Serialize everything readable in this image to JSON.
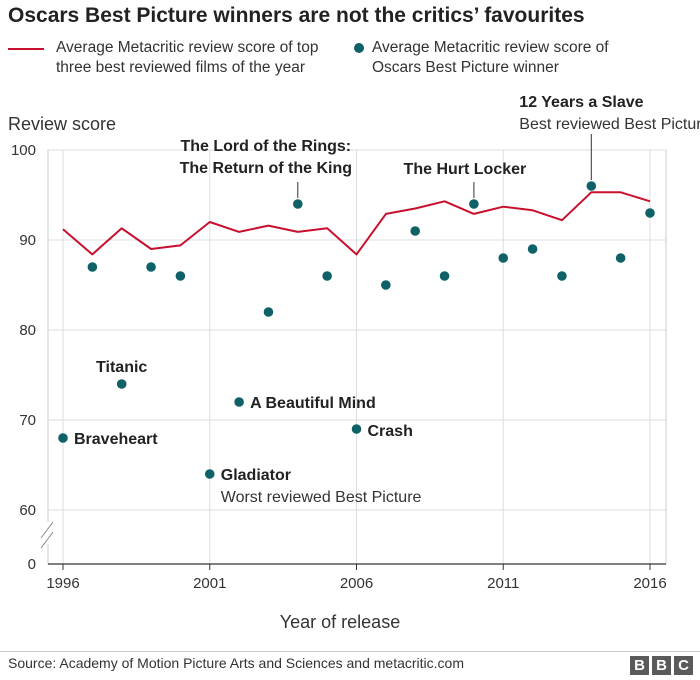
{
  "title": "Oscars Best Picture winners are not the critics’ favourites",
  "source": "Source: Academy of Motion Picture Arts and Sciences and metacritic.com",
  "logo_letters": [
    "B",
    "B",
    "C"
  ],
  "colors": {
    "line": "#c8102e",
    "dot": "#0e6166",
    "grid": "#dddddd",
    "axis": "#333333"
  },
  "chart_data": {
    "type": "line",
    "title": "Oscars Best Picture winners are not the critics’ favourites",
    "xlabel": "Year of release",
    "ylabel": "Review score",
    "x_ticks": [
      1996,
      2001,
      2006,
      2011,
      2016
    ],
    "y_ticks": [
      0,
      60,
      70,
      80,
      90,
      100
    ],
    "ylim": [
      60,
      100
    ],
    "y_axis_break": true,
    "grid": true,
    "series": [
      {
        "name": "Average Metacritic review score of top three best reviewed films of the year",
        "style": "line",
        "x": [
          1996,
          1997,
          1998,
          1999,
          2000,
          2001,
          2002,
          2003,
          2004,
          2005,
          2006,
          2007,
          2008,
          2009,
          2010,
          2011,
          2012,
          2013,
          2014,
          2015,
          2016
        ],
        "y": [
          91.2,
          88.4,
          91.3,
          89.0,
          89.4,
          92.0,
          90.9,
          91.6,
          90.9,
          91.3,
          88.4,
          92.9,
          93.5,
          94.3,
          92.9,
          93.7,
          93.3,
          92.2,
          95.3,
          95.3,
          94.3
        ]
      },
      {
        "name": "Average Metacritic review score of Oscars Best Picture winner",
        "style": "dot",
        "x": [
          1996,
          1997,
          1998,
          1999,
          2000,
          2001,
          2002,
          2003,
          2004,
          2005,
          2006,
          2007,
          2008,
          2009,
          2010,
          2011,
          2012,
          2013,
          2014,
          2015,
          2016
        ],
        "y": [
          68,
          87,
          74,
          87,
          86,
          64,
          72,
          82,
          94,
          86,
          69,
          85,
          91,
          86,
          94,
          88,
          89,
          86,
          96,
          88,
          93
        ]
      }
    ],
    "annotations": [
      {
        "id": "braveheart",
        "year": 1996,
        "lines": [
          "Braveheart"
        ],
        "bold": true
      },
      {
        "id": "titanic",
        "year": 1998,
        "lines": [
          "Titanic"
        ],
        "bold": true
      },
      {
        "id": "gladiator",
        "year": 2001,
        "lines": [
          "Gladiator"
        ],
        "sub": "Worst reviewed Best Picture",
        "bold": true
      },
      {
        "id": "beautiful-mind",
        "year": 2002,
        "lines": [
          "A Beautiful Mind"
        ],
        "bold": true
      },
      {
        "id": "crash",
        "year": 2006,
        "lines": [
          "Crash"
        ],
        "bold": true
      },
      {
        "id": "lotr",
        "year": 2004,
        "lines": [
          "The Lord of the Rings:",
          "The Return of the King"
        ],
        "bold": true
      },
      {
        "id": "hurt-locker",
        "year": 2010,
        "lines": [
          "The Hurt Locker"
        ],
        "bold": true
      },
      {
        "id": "12-years",
        "year": 2014,
        "lines": [
          "12 Years a Slave"
        ],
        "sub": "Best reviewed Best Picture",
        "bold": true
      }
    ]
  }
}
